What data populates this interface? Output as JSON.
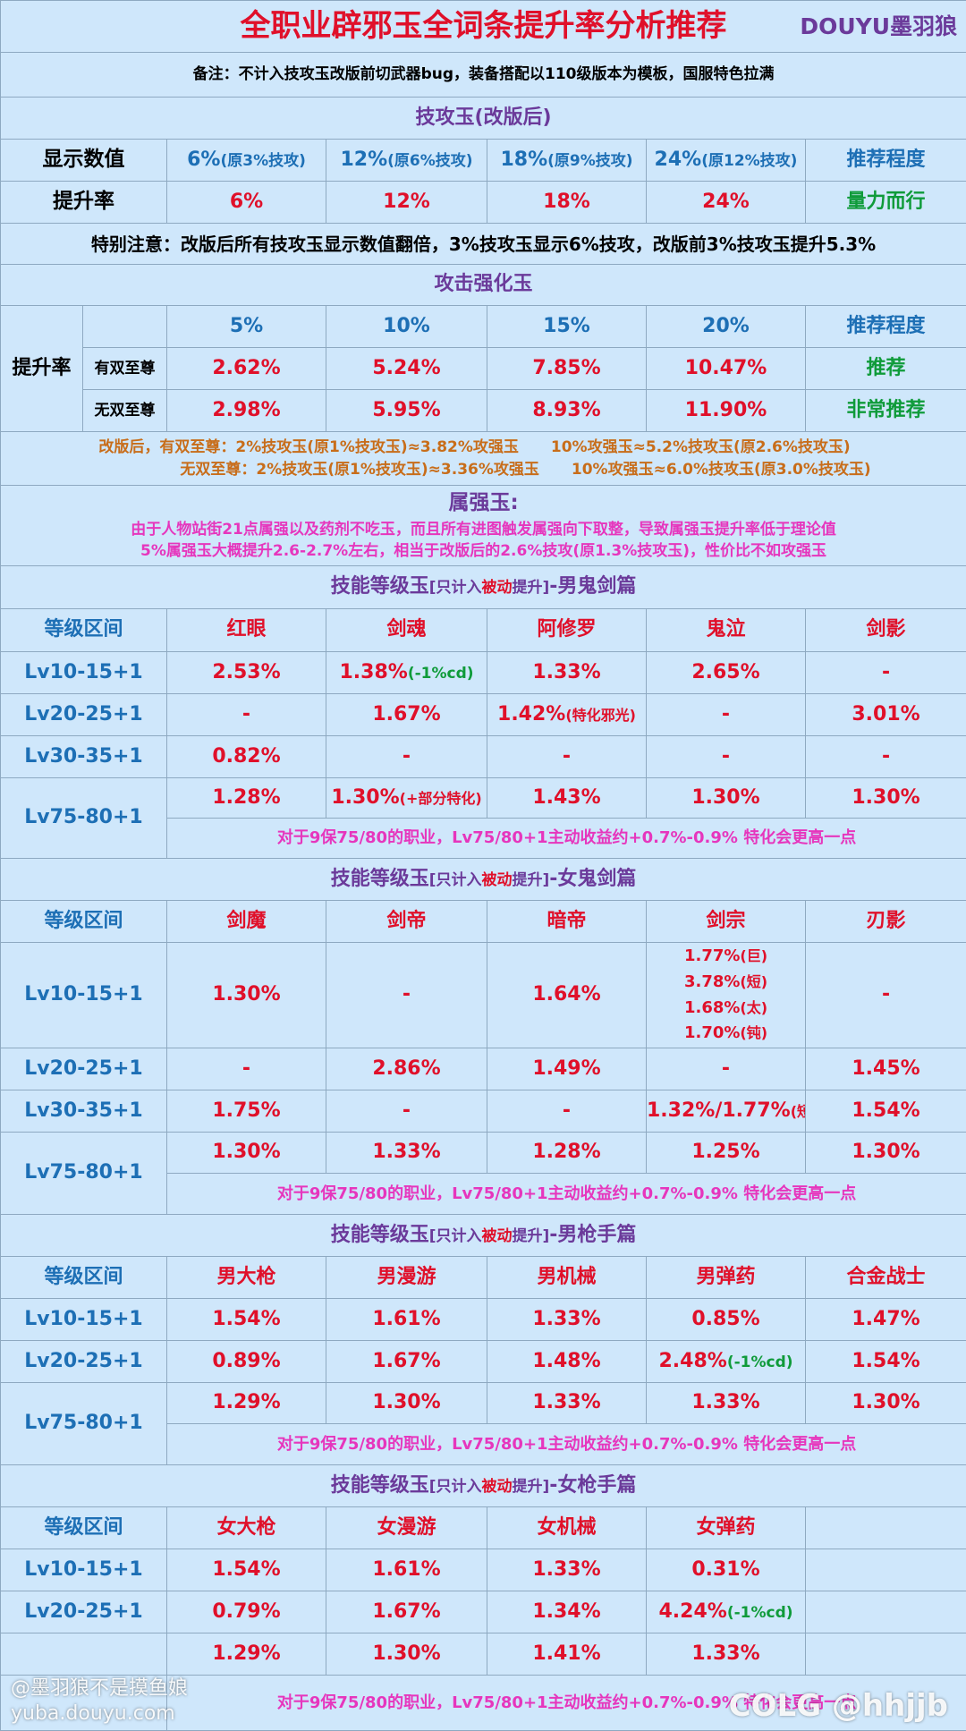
{
  "title": "全职业辟邪玉全词条提升率分析推荐",
  "brand": "DOUYU墨羽狼",
  "note": "备注：不计入技攻玉改版前切武器bug，装备搭配以110级版本为模板，国服特色拉满",
  "colors": {
    "red": "#e0102a",
    "blue": "#1d6fb5",
    "purple": "#6b3a9a",
    "green": "#0f9b3a",
    "magenta": "#e636bd",
    "orange": "#c86d1a",
    "background": "#cfe7fb"
  },
  "skillatk": {
    "heading": "技攻玉(改版后)",
    "row1_label": "显示数值",
    "cols": [
      {
        "v": "6%",
        "sub": "(原3%技攻)"
      },
      {
        "v": "12%",
        "sub": "(原6%技攻)"
      },
      {
        "v": "18%",
        "sub": "(原9%技攻)"
      },
      {
        "v": "24%",
        "sub": "(原12%技攻)"
      }
    ],
    "rec_header": "推荐程度",
    "row2_label": "提升率",
    "rates": [
      "6%",
      "12%",
      "18%",
      "24%"
    ],
    "rec": "量力而行",
    "special": "特别注意：改版后所有技攻玉显示数值翻倍，3%技攻玉显示6%技攻，改版前3%技攻玉提升5.3%"
  },
  "atk": {
    "heading": "攻击强化玉",
    "label": "提升率",
    "cols": [
      "5%",
      "10%",
      "15%",
      "20%"
    ],
    "rec_header": "推荐程度",
    "rows": [
      {
        "name": "有双至尊",
        "vals": [
          "2.62%",
          "5.24%",
          "7.85%",
          "10.47%"
        ],
        "rec": "推荐"
      },
      {
        "name": "无双至尊",
        "vals": [
          "2.98%",
          "5.95%",
          "8.93%",
          "11.90%"
        ],
        "rec": "非常推荐"
      }
    ],
    "note1a": "改版后，有双至尊：2%技攻玉(原1%技攻玉)≈3.82%攻强玉",
    "note1b": "10%攻强玉≈5.2%技攻玉(原2.6%技攻玉)",
    "note2a": "无双至尊：2%技攻玉(原1%技攻玉)≈3.36%攻强玉",
    "note2b": "10%攻强玉≈6.0%技攻玉(原3.0%技攻玉)"
  },
  "elem": {
    "heading": "属强玉:",
    "line1": "由于人物站街21点属强以及药剂不吃玉，而且所有进图触发属强向下取整，导致属强玉提升率低于理论值",
    "line2": "5%属强玉大概提升2.6-2.7%左右，相当于改版后的2.6%技攻(原1.3%技攻玉)，性价比不如攻强玉"
  },
  "tag_pre": "[只计入",
  "tag_red": "被动",
  "tag_post": "提升]",
  "level_header": "等级区间",
  "note75": "对于9保75/80的职业，Lv75/80+1主动收益约+0.7%-0.9% 特化会更高一点",
  "sec1": {
    "title_pre": "技能等级玉",
    "title_post": "-男鬼剑篇",
    "classes": [
      "红眼",
      "剑魂",
      "阿修罗",
      "鬼泣",
      "剑影"
    ],
    "lv10": "Lv10-15+1",
    "r10": [
      {
        "v": "2.53%"
      },
      {
        "v": "1.38%",
        "g": "(-1%cd)"
      },
      {
        "v": "1.33%"
      },
      {
        "v": "2.65%"
      },
      {
        "v": "-"
      }
    ],
    "lv20": "Lv20-25+1",
    "r20": [
      {
        "v": "-"
      },
      {
        "v": "1.67%"
      },
      {
        "v": "1.42%",
        "s": "(特化邪光)"
      },
      {
        "v": "-"
      },
      {
        "v": "3.01%"
      }
    ],
    "lv30": "Lv30-35+1",
    "r30": [
      {
        "v": "0.82%"
      },
      {
        "v": "-"
      },
      {
        "v": "-"
      },
      {
        "v": "-"
      },
      {
        "v": "-"
      }
    ],
    "lv75": "Lv75-80+1",
    "r75": [
      {
        "v": "1.28%"
      },
      {
        "v": "1.30%",
        "s": "(+部分特化)"
      },
      {
        "v": "1.43%"
      },
      {
        "v": "1.30%"
      },
      {
        "v": "1.30%"
      }
    ]
  },
  "sec2": {
    "title_pre": "技能等级玉",
    "title_post": "-女鬼剑篇",
    "classes": [
      "剑魔",
      "剑帝",
      "暗帝",
      "剑宗",
      "刃影"
    ],
    "lv10": "Lv10-15+1",
    "r10": [
      {
        "v": "1.30%"
      },
      {
        "v": "-"
      },
      {
        "v": "1.64%"
      },
      {
        "v": "-"
      }
    ],
    "jz10": [
      {
        "v": "1.77%",
        "s": "(巨)"
      },
      {
        "v": "3.78%",
        "s": "(短)"
      },
      {
        "v": "1.68%",
        "s": "(太)"
      },
      {
        "v": "1.70%",
        "s": "(钝)"
      }
    ],
    "lv20": "Lv20-25+1",
    "r20": [
      {
        "v": "-"
      },
      {
        "v": "2.86%"
      },
      {
        "v": "1.49%"
      },
      {
        "v": "-"
      },
      {
        "v": "1.45%"
      }
    ],
    "lv30": "Lv30-35+1",
    "r30": [
      {
        "v": "1.75%"
      },
      {
        "v": "-"
      },
      {
        "v": "-"
      },
      {
        "v": "1.32%/1.77%",
        "s": "(短)"
      },
      {
        "v": "1.54%"
      }
    ],
    "lv75": "Lv75-80+1",
    "r75": [
      {
        "v": "1.30%"
      },
      {
        "v": "1.33%"
      },
      {
        "v": "1.28%"
      },
      {
        "v": "1.25%"
      },
      {
        "v": "1.30%"
      }
    ]
  },
  "sec3": {
    "title_pre": "技能等级玉",
    "title_post": "-男枪手篇",
    "classes": [
      "男大枪",
      "男漫游",
      "男机械",
      "男弹药",
      "合金战士"
    ],
    "lv10": "Lv10-15+1",
    "r10": [
      {
        "v": "1.54%"
      },
      {
        "v": "1.61%"
      },
      {
        "v": "1.33%"
      },
      {
        "v": "0.85%"
      },
      {
        "v": "1.47%"
      }
    ],
    "lv20": "Lv20-25+1",
    "r20": [
      {
        "v": "0.89%"
      },
      {
        "v": "1.67%"
      },
      {
        "v": "1.48%"
      },
      {
        "v": "2.48%",
        "g": "(-1%cd)"
      },
      {
        "v": "1.54%"
      }
    ],
    "lv75": "Lv75-80+1",
    "r75": [
      {
        "v": "1.29%"
      },
      {
        "v": "1.30%"
      },
      {
        "v": "1.33%"
      },
      {
        "v": "1.33%"
      },
      {
        "v": "1.30%"
      }
    ]
  },
  "sec4": {
    "title_pre": "技能等级玉",
    "title_post": "-女枪手篇",
    "classes": [
      "女大枪",
      "女漫游",
      "女机械",
      "女弹药",
      ""
    ],
    "lv10": "Lv10-15+1",
    "r10": [
      {
        "v": "1.54%"
      },
      {
        "v": "1.61%"
      },
      {
        "v": "1.33%"
      },
      {
        "v": "0.31%"
      },
      {
        "v": ""
      }
    ],
    "lv20": "Lv20-25+1",
    "r20": [
      {
        "v": "0.79%"
      },
      {
        "v": "1.67%"
      },
      {
        "v": "1.34%"
      },
      {
        "v": "4.24%",
        "g": "(-1%cd)"
      },
      {
        "v": ""
      }
    ],
    "r75": [
      {
        "v": "1.29%"
      },
      {
        "v": "1.30%"
      },
      {
        "v": "1.41%"
      },
      {
        "v": "1.33%"
      },
      {
        "v": ""
      }
    ]
  },
  "watermark": {
    "left1": "@墨羽狼不是摸鱼娘",
    "left2": "yuba.douyu.com",
    "right": "COLG @hhjjb"
  }
}
